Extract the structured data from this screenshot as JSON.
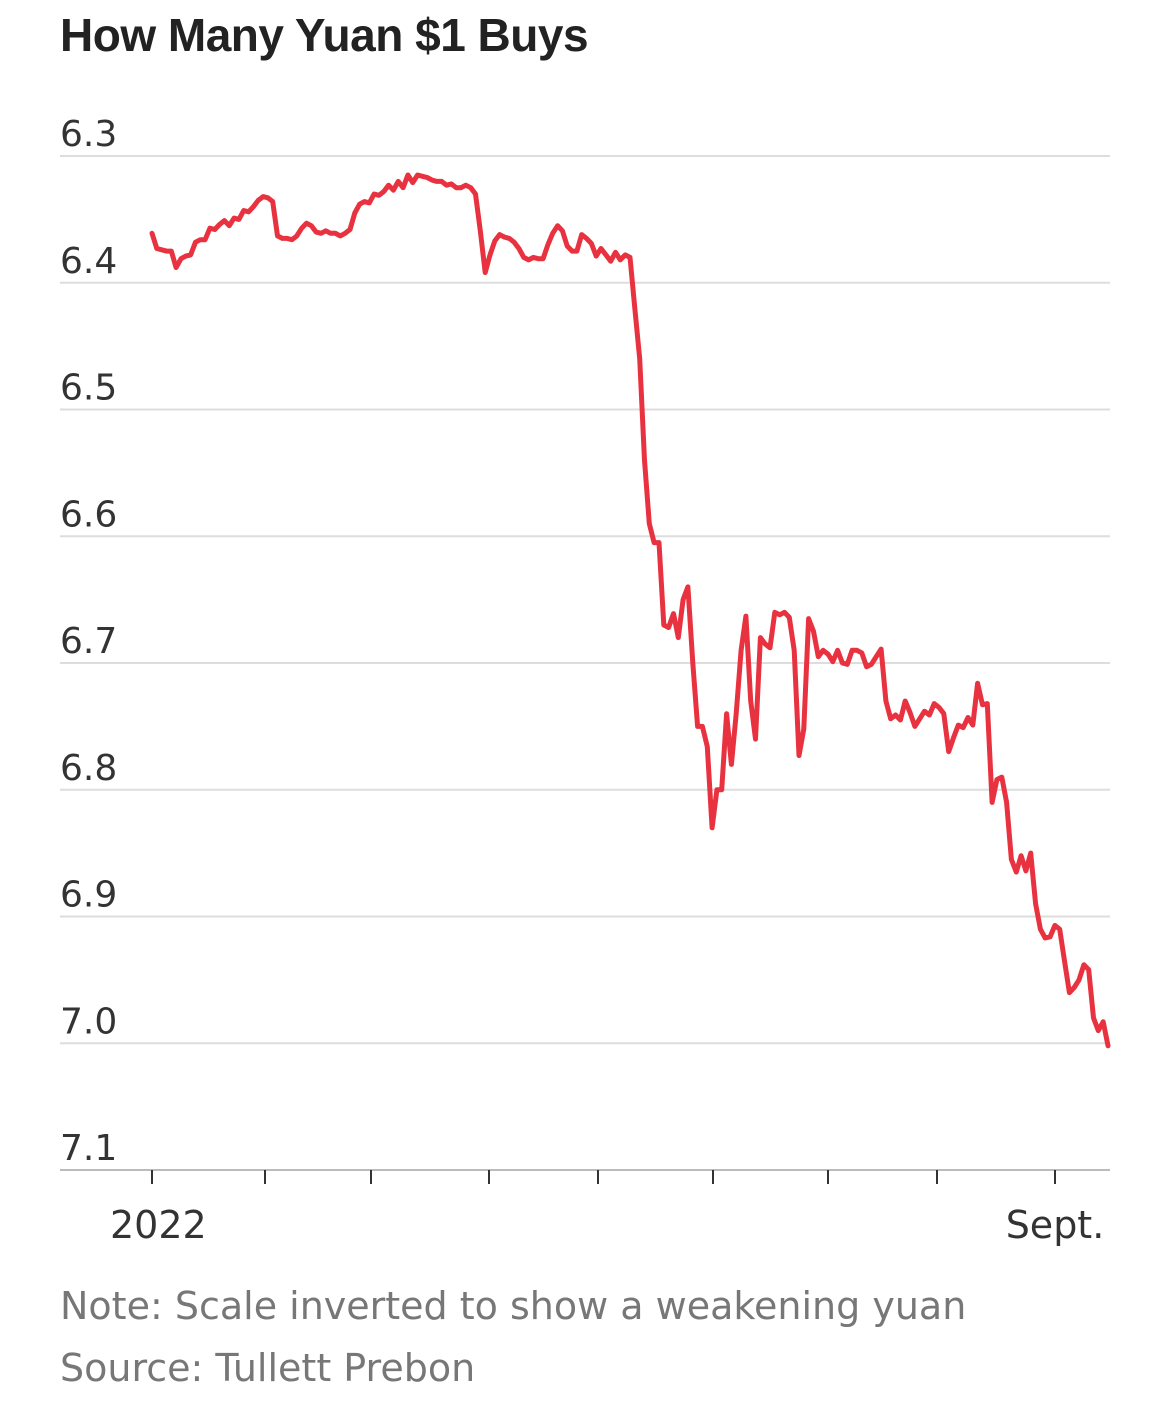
{
  "chart_data": {
    "type": "line",
    "title": "How Many Yuan $1 Buys",
    "note": "Note: Scale inverted to show a weakening yuan",
    "source": "Source: Tullett Prebon",
    "y_inverted": true,
    "ylim": [
      6.3,
      7.1
    ],
    "yticks": [
      "6.3",
      "6.4",
      "6.5",
      "6.6",
      "6.7",
      "6.8",
      "6.9",
      "7.0",
      "7.1"
    ],
    "grid": true,
    "xlabels": [
      {
        "label": "2022",
        "month_index": 0
      },
      {
        "label": "Sept.",
        "month_index": 8
      }
    ],
    "color": "#e8323f",
    "series": [
      {
        "values": [
          6.361,
          6.373,
          6.374,
          6.375,
          6.375,
          6.388,
          6.381,
          6.379,
          6.378,
          6.368,
          6.366,
          6.366,
          6.357,
          6.358,
          6.354,
          6.351,
          6.355,
          6.349,
          6.35,
          6.343,
          6.344,
          6.34,
          6.335,
          6.332,
          6.333,
          6.336,
          6.363,
          6.365,
          6.365,
          6.366,
          6.363,
          6.357,
          6.353,
          6.355,
          6.36,
          6.361,
          6.359,
          6.361,
          6.361,
          6.363,
          6.361,
          6.358,
          6.345,
          6.338,
          6.336,
          6.337,
          6.33,
          6.331,
          6.328,
          6.323,
          6.327,
          6.32,
          6.325,
          6.315,
          6.321,
          6.315,
          6.316,
          6.317,
          6.319,
          6.32,
          6.32,
          6.323,
          6.322,
          6.325,
          6.325,
          6.323,
          6.325,
          6.33,
          6.359,
          6.392,
          6.378,
          6.367,
          6.362,
          6.364,
          6.365,
          6.368,
          6.373,
          6.38,
          6.382,
          6.38,
          6.381,
          6.381,
          6.37,
          6.361,
          6.355,
          6.359,
          6.371,
          6.375,
          6.375,
          6.362,
          6.365,
          6.369,
          6.379,
          6.373,
          6.378,
          6.383,
          6.376,
          6.382,
          6.378,
          6.38,
          6.42,
          6.46,
          6.54,
          6.59,
          6.605,
          6.605,
          6.67,
          6.672,
          6.661,
          6.68,
          6.65,
          6.64,
          6.7,
          6.75,
          6.75,
          6.766,
          6.83,
          6.8,
          6.8,
          6.74,
          6.78,
          6.74,
          6.69,
          6.663,
          6.73,
          6.76,
          6.68,
          6.685,
          6.688,
          6.66,
          6.662,
          6.66,
          6.664,
          6.69,
          6.773,
          6.752,
          6.665,
          6.675,
          6.695,
          6.69,
          6.693,
          6.699,
          6.69,
          6.7,
          6.701,
          6.69,
          6.69,
          6.692,
          6.703,
          6.701,
          6.695,
          6.689,
          6.73,
          6.744,
          6.741,
          6.745,
          6.73,
          6.739,
          6.75,
          6.744,
          6.738,
          6.741,
          6.732,
          6.735,
          6.74,
          6.77,
          6.759,
          6.749,
          6.751,
          6.743,
          6.749,
          6.716,
          6.733,
          6.732,
          6.81,
          6.792,
          6.79,
          6.81,
          6.855,
          6.865,
          6.852,
          6.864,
          6.85,
          6.89,
          6.91,
          6.917,
          6.916,
          6.907,
          6.91,
          6.935,
          6.96,
          6.956,
          6.95,
          6.938,
          6.942,
          6.98,
          6.99,
          6.983,
          7.002
        ]
      }
    ]
  }
}
